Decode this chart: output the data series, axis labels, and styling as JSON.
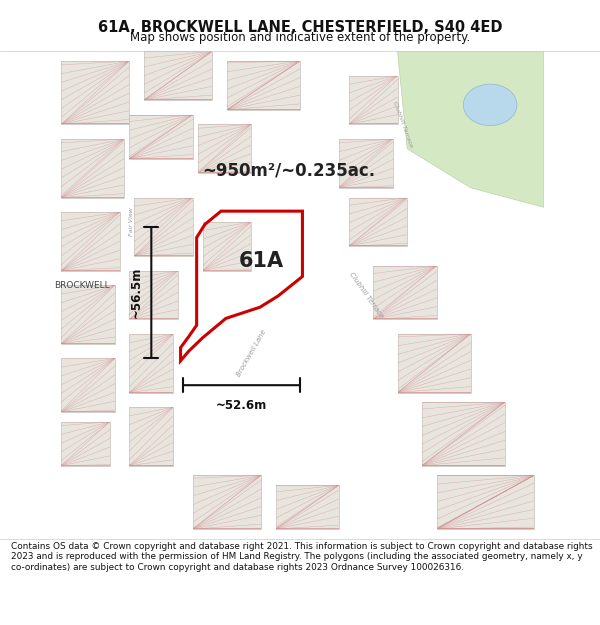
{
  "title": "61A, BROCKWELL LANE, CHESTERFIELD, S40 4ED",
  "subtitle": "Map shows position and indicative extent of the property.",
  "footer": "Contains OS data © Crown copyright and database right 2021. This information is subject to Crown copyright and database rights 2023 and is reproduced with the permission of\nHM Land Registry. The polygons (including the associated geometry, namely x, y co-ordinates) are subject to Crown copyright and database rights 2023 Ordnance Survey\n100026316.",
  "area_label": "~950m²/~0.235ac.",
  "label_61A": "61A",
  "dim_width": "~52.6m",
  "dim_height": "~56.5m",
  "bg_color": "#ffffff",
  "map_bg": "#f7f5f2",
  "building_fill": "#e8e4de",
  "building_edge": "#c8c0b8",
  "hatch_color": "#d09090",
  "green_color": "#d4e8c4",
  "green_edge": "#b8d4a8",
  "water_color": "#b8d8ec",
  "water_edge": "#90b8d0",
  "property_color": "#cc0000",
  "dim_color": "#111111",
  "road_label_color": "#aaaaaa",
  "street_label_color": "#999999",
  "label_color": "#222222",
  "title_color": "#111111"
}
